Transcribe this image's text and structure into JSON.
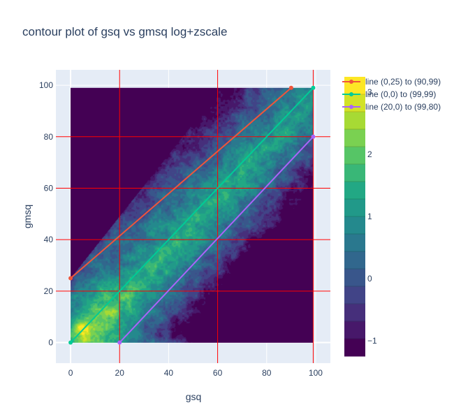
{
  "chart_data": {
    "type": "contour",
    "title": "contour plot of gsq vs gmsq log+zscale",
    "xlabel": "gsq",
    "ylabel": "gmsq",
    "xlim": [
      -6,
      106
    ],
    "ylim": [
      -8,
      106
    ],
    "xticks": [
      0,
      20,
      40,
      60,
      80,
      100
    ],
    "yticks": [
      0,
      20,
      40,
      60,
      80,
      100
    ],
    "colorscale": "Viridis",
    "colorbar": {
      "range": [
        -1.25,
        3.25
      ],
      "levels": 16,
      "ticks": [
        -1,
        0,
        1,
        2,
        3
      ],
      "tick_labels": [
        "−1",
        "0",
        "1",
        "2",
        "3"
      ]
    },
    "series": [
      {
        "name": "line (0,25) to (90,99)",
        "color": "#ef553b",
        "x": [
          0,
          90
        ],
        "y": [
          25,
          99
        ]
      },
      {
        "name": "line (0,0) to (99,99)",
        "color": "#00cc96",
        "x": [
          0,
          99
        ],
        "y": [
          0,
          99
        ]
      },
      {
        "name": "line (20,0) to (99,80)",
        "color": "#ab63fa",
        "x": [
          20,
          99
        ],
        "y": [
          0,
          80
        ]
      }
    ],
    "red_guides": {
      "color": "#ff0000",
      "vertical_x": [
        20,
        60,
        99
      ],
      "horizontal_y": [
        20,
        40,
        60,
        80
      ]
    }
  }
}
